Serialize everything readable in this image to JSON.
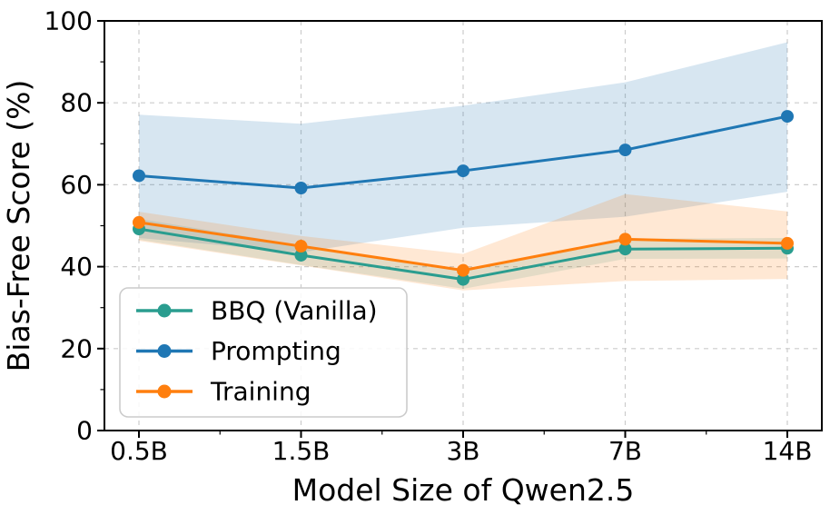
{
  "figure": {
    "background": "#ffffff"
  },
  "chart_data": {
    "type": "line",
    "title": "",
    "xlabel": "Model Size of Qwen2.5",
    "ylabel": "Bias-Free Score (%)",
    "categories": [
      "0.5B",
      "1.5B",
      "3B",
      "7B",
      "14B"
    ],
    "ylim": [
      0,
      100
    ],
    "yticks": [
      0,
      20,
      40,
      60,
      80,
      100
    ],
    "y_minor_ticks": [
      10,
      30,
      50,
      70,
      90
    ],
    "grid": true,
    "grid_color": "#cccccc",
    "axis_color": "#000000",
    "legend_position": "lower-left",
    "series": [
      {
        "name": "BBQ (Vanilla)",
        "color": "#2a9d8f",
        "values": [
          49.2,
          42.8,
          36.9,
          44.3,
          44.5
        ],
        "band_lower": [
          46.6,
          40.4,
          34.6,
          41.9,
          42.0
        ],
        "band_upper": [
          51.7,
          45.2,
          39.4,
          46.8,
          47.0
        ],
        "band_opacity": 0.15
      },
      {
        "name": "Prompting",
        "color": "#1f77b4",
        "values": [
          62.2,
          59.2,
          63.4,
          68.5,
          76.7
        ],
        "band_lower": [
          47.0,
          43.5,
          49.5,
          52.2,
          58.3
        ],
        "band_upper": [
          77.1,
          74.9,
          79.3,
          85.0,
          94.8
        ],
        "band_opacity": 0.18
      },
      {
        "name": "Training",
        "color": "#ff7f0e",
        "values": [
          50.8,
          45.0,
          39.1,
          46.7,
          45.7
        ],
        "band_lower": [
          46.3,
          40.3,
          34.2,
          36.5,
          37.0
        ],
        "band_upper": [
          53.4,
          47.5,
          43.1,
          57.7,
          53.5
        ],
        "band_opacity": 0.18
      }
    ]
  }
}
